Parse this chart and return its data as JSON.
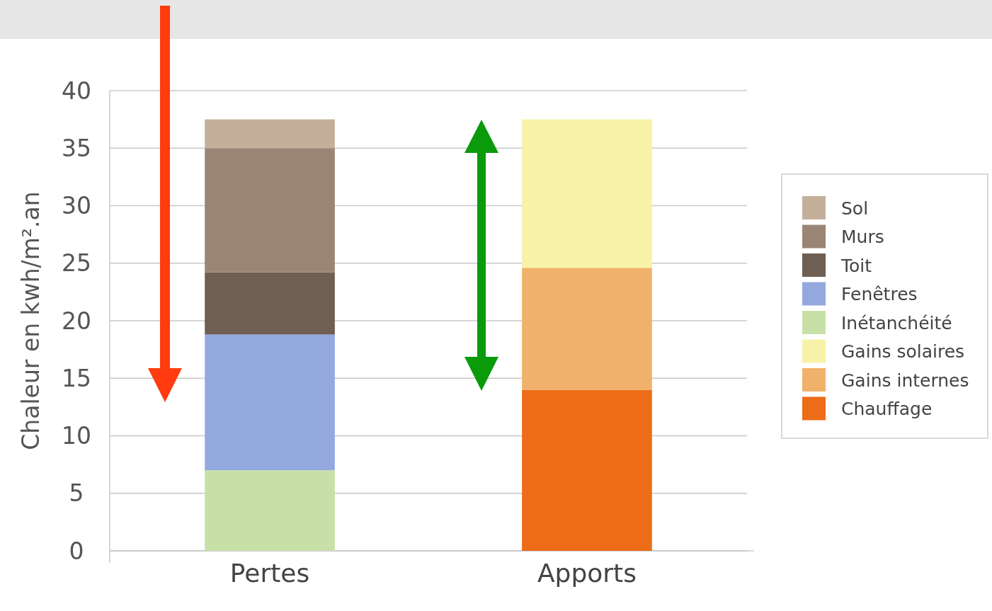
{
  "chart_data": {
    "type": "bar",
    "stacked": true,
    "ylabel": "Chaleur en kwh/m².an",
    "categories": [
      "Pertes",
      "Apports"
    ],
    "ylim": [
      0,
      40
    ],
    "yticks": [
      0,
      5,
      10,
      15,
      20,
      25,
      30,
      35,
      40
    ],
    "grid": "y",
    "legend": "right",
    "series": [
      {
        "name": "Inétanchéité",
        "color": "#c8e0a8",
        "values": [
          7.0,
          null
        ]
      },
      {
        "name": "Fenêtres",
        "color": "#93a9de",
        "values": [
          11.8,
          null
        ]
      },
      {
        "name": "Toit",
        "color": "#6e5f52",
        "values": [
          5.4,
          null
        ]
      },
      {
        "name": "Murs",
        "color": "#9a8574",
        "values": [
          10.8,
          null
        ]
      },
      {
        "name": "Sol",
        "color": "#c4b09a",
        "values": [
          2.5,
          null
        ]
      },
      {
        "name": "Chauffage",
        "color": "#ec6c18",
        "values": [
          null,
          14.0
        ]
      },
      {
        "name": "Gains internes",
        "color": "#f0b26a",
        "values": [
          null,
          10.6
        ]
      },
      {
        "name": "Gains solaires",
        "color": "#f8f2a8",
        "values": [
          null,
          12.9
        ]
      }
    ]
  }
}
